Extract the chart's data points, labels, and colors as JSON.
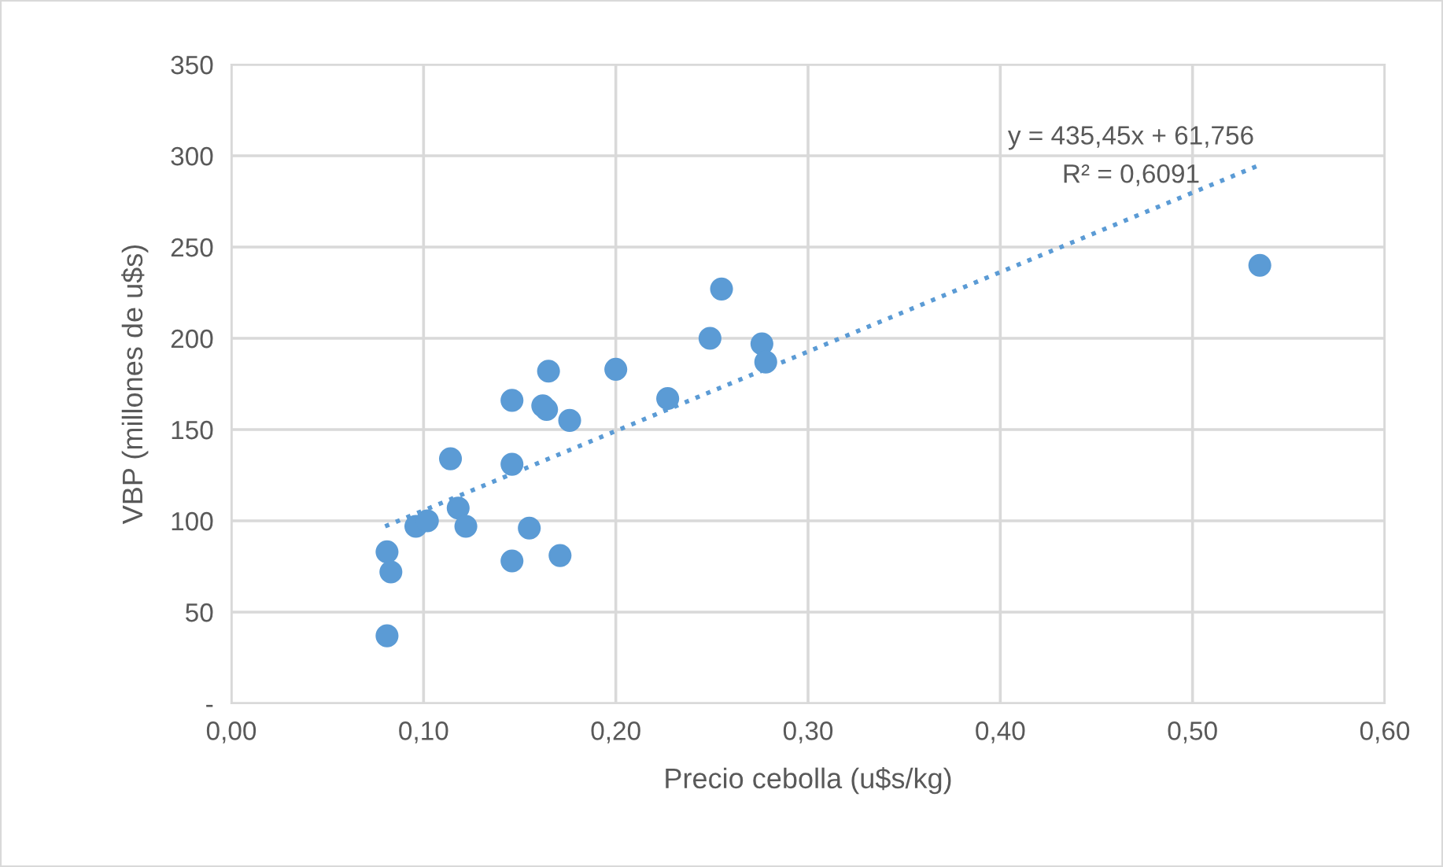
{
  "chart_data": {
    "type": "scatter",
    "xlabel": "Precio cebolla (u$s/kg)",
    "ylabel": "VBP (millones de u$s)",
    "xlim": [
      0,
      0.6
    ],
    "ylim": [
      0,
      350
    ],
    "xticks": [
      {
        "value": 0,
        "label": "0,00"
      },
      {
        "value": 0.1,
        "label": "0,10"
      },
      {
        "value": 0.2,
        "label": "0,20"
      },
      {
        "value": 0.3,
        "label": "0,30"
      },
      {
        "value": 0.4,
        "label": "0,40"
      },
      {
        "value": 0.5,
        "label": "0,50"
      },
      {
        "value": 0.6,
        "label": "0,60"
      }
    ],
    "yticks": [
      {
        "value": 0,
        "label": "-"
      },
      50,
      100,
      150,
      200,
      250,
      300,
      350
    ],
    "grid": true,
    "series": [
      {
        "marker": "circle",
        "color": "#5b9bd5",
        "x": [
          0.081,
          0.081,
          0.083,
          0.096,
          0.102,
          0.114,
          0.118,
          0.122,
          0.146,
          0.146,
          0.146,
          0.155,
          0.162,
          0.164,
          0.165,
          0.171,
          0.176,
          0.2,
          0.227,
          0.249,
          0.255,
          0.276,
          0.278,
          0.535
        ],
        "values": [
          37,
          83,
          72,
          97,
          100,
          134,
          107,
          97,
          78,
          131,
          166,
          96,
          163,
          161,
          182,
          81,
          155,
          183,
          167,
          200,
          227,
          197,
          187,
          240
        ]
      },
      {
        "type": "line",
        "color": "#5b9bd5",
        "line_style": "dotted",
        "marker": "none",
        "x": [
          0.08,
          0.535
        ],
        "values": [
          97,
          295
        ]
      }
    ],
    "annotations": [
      "y = 435,45x + 61,756",
      "R² = 0,6091"
    ]
  }
}
